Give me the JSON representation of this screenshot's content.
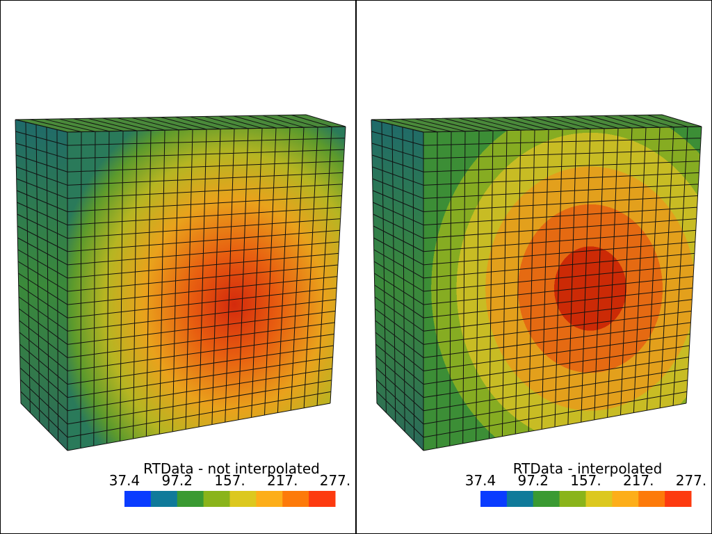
{
  "panels": [
    {
      "title": "RTData - not interpolated",
      "colorbar": {
        "labels": [
          "37.4",
          "97.2",
          "157.",
          "217.",
          "277."
        ],
        "colors": [
          "#0a3cff",
          "#0f7a9a",
          "#3a9a32",
          "#8ab41a",
          "#dcc81e",
          "#fdae19",
          "#fd7a0a",
          "#fd3a0f"
        ]
      }
    },
    {
      "title": "RTData - interpolated",
      "colorbar": {
        "labels": [
          "37.4",
          "97.2",
          "157.",
          "217.",
          "277."
        ],
        "colors": [
          "#0a3cff",
          "#0f7a9a",
          "#3a9a32",
          "#8ab41a",
          "#dcc81e",
          "#fdae19",
          "#fd7a0a",
          "#fd3a0f"
        ]
      }
    }
  ]
}
